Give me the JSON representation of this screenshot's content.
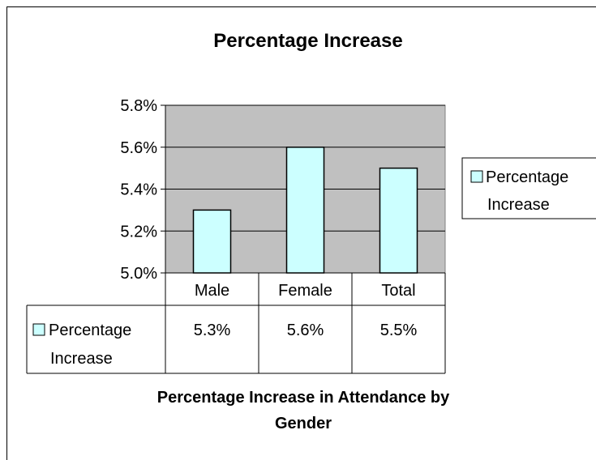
{
  "chart_data": {
    "type": "bar",
    "title": "Percentage Increase",
    "xlabel": "Percentage Increase in Attendance by Gender",
    "xlabel_lines": [
      "Percentage Increase in Attendance by",
      "Gender"
    ],
    "ylabel": "",
    "categories": [
      "Male",
      "Female",
      "Total"
    ],
    "series": [
      {
        "name": "Percentage Increase",
        "name_lines": [
          "Percentage",
          "Increase"
        ],
        "values": [
          5.3,
          5.6,
          5.5
        ],
        "value_labels": [
          "5.3%",
          "5.6%",
          "5.5%"
        ]
      }
    ],
    "ylim": [
      5.0,
      5.8
    ],
    "yticks": [
      5.0,
      5.2,
      5.4,
      5.6,
      5.8
    ],
    "ytick_labels": [
      "5.0%",
      "5.2%",
      "5.4%",
      "5.6%",
      "5.8%"
    ],
    "grid": true,
    "legend": "right",
    "data_table": true,
    "colors": {
      "bar_fill": "#ccffff",
      "plot_bg": "#c0c0c0",
      "outline": "#000000"
    }
  }
}
